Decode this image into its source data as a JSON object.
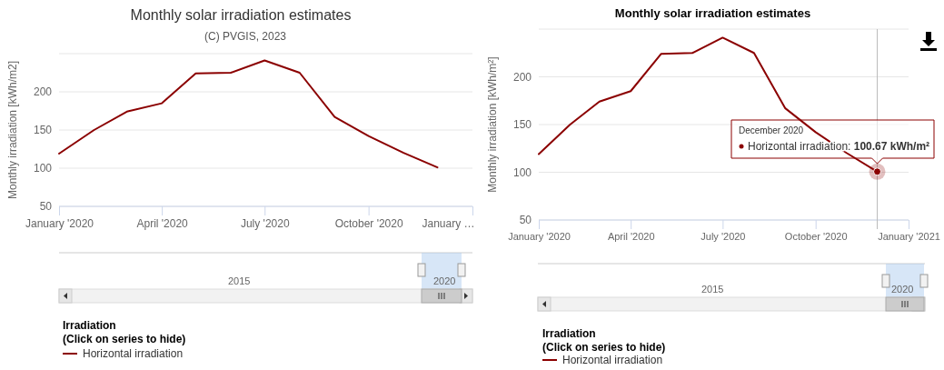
{
  "chart_data": [
    {
      "type": "line",
      "title": "Monthly solar irradiation estimates",
      "subtitle": "(C) PVGIS, 2023",
      "ylabel": "Monthly irradiation [kWh/m2]",
      "legend_title": "Irradiation\n(Click on series to hide)",
      "x": [
        "2020-01",
        "2020-02",
        "2020-03",
        "2020-04",
        "2020-05",
        "2020-06",
        "2020-07",
        "2020-08",
        "2020-09",
        "2020-10",
        "2020-11",
        "2020-12"
      ],
      "series": [
        {
          "name": "Horizontal irradiation",
          "color": "#8b0000",
          "values": [
            119,
            150,
            174,
            185,
            224,
            225,
            241,
            225,
            167,
            142,
            120,
            101
          ]
        }
      ],
      "xlim": [
        "2020-01",
        "2021-01"
      ],
      "xticks": [
        {
          "value": "2020-01",
          "label": "January '2020"
        },
        {
          "value": "2020-04",
          "label": "April '2020"
        },
        {
          "value": "2020-07",
          "label": "July '2020"
        },
        {
          "value": "2020-10",
          "label": "October '2020"
        },
        {
          "value": "2021-01",
          "label": "January …"
        }
      ],
      "ylim": [
        50,
        250
      ],
      "yticks": [
        50,
        100,
        150,
        200,
        {
          "value": 250,
          "label": null
        }
      ],
      "annotations": [
        "2015",
        "2020"
      ],
      "grid": "y",
      "legend": "bottom",
      "marker": "none",
      "line_style": "solid"
    },
    {
      "type": "line",
      "title": "Monthly solar irradiation estimates",
      "ylabel": "Monthly irradiation [kWh/m²]",
      "legend_title": "Irradiation\n(Click on series to hide)",
      "x": [
        "2020-01",
        "2020-02",
        "2020-03",
        "2020-04",
        "2020-05",
        "2020-06",
        "2020-07",
        "2020-08",
        "2020-09",
        "2020-10",
        "2020-11",
        "2020-12"
      ],
      "series": [
        {
          "name": "Horizontal irradiation",
          "color": "#8b0000",
          "values": [
            119,
            150,
            174,
            185,
            224,
            225,
            241,
            225,
            167,
            142,
            120,
            100.67
          ]
        }
      ],
      "xlim": [
        "2020-01",
        "2021-01"
      ],
      "xticks": [
        {
          "value": "2020-01",
          "label": "January '2020"
        },
        {
          "value": "2020-04",
          "label": "April '2020"
        },
        {
          "value": "2020-07",
          "label": "July '2020"
        },
        {
          "value": "2020-10",
          "label": "October '2020"
        },
        {
          "value": "2021-01",
          "label": "January '2021"
        }
      ],
      "ylim": [
        50,
        250
      ],
      "yticks": [
        50,
        100,
        150,
        200,
        {
          "value": 250,
          "label": null
        }
      ],
      "ref_lines": [
        {
          "axis": "x",
          "value": "2020-12",
          "color": "#bbbbbb"
        }
      ],
      "annotations": [
        {
          "text": "December 2020\nHorizontal irradiation: 100.67 kWh/m²",
          "x": "2020-12",
          "y": 100.67
        },
        "2015",
        "2020"
      ],
      "grid": "y",
      "legend": "bottom",
      "marker": "none",
      "line_style": "solid"
    }
  ]
}
